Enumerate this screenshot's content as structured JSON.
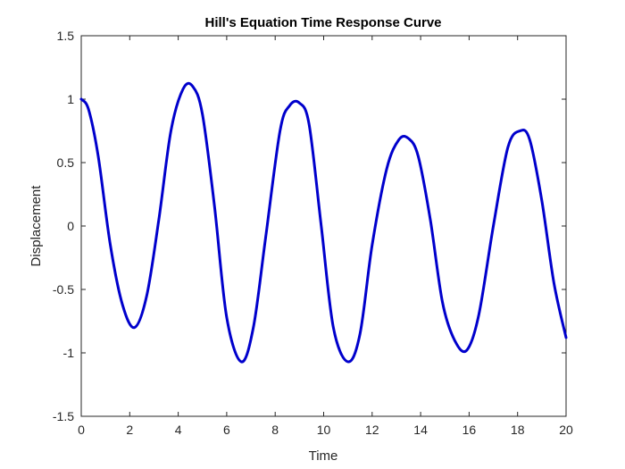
{
  "chart_data": {
    "type": "line",
    "title": "Hill's Equation Time Response Curve",
    "xlabel": "Time",
    "ylabel": "Displacement",
    "xlim": [
      0,
      20
    ],
    "ylim": [
      -1.5,
      1.5
    ],
    "xticks": [
      0,
      2,
      4,
      6,
      8,
      10,
      12,
      14,
      16,
      18,
      20
    ],
    "xtick_labels": [
      "0",
      "2",
      "4",
      "6",
      "8",
      "10",
      "12",
      "14",
      "16",
      "18",
      "20"
    ],
    "yticks": [
      1.5,
      1,
      0.5,
      0,
      -0.5,
      -1,
      -1.5
    ],
    "ytick_labels": [
      "1.5",
      "1",
      "0.5",
      "0",
      "-0.5",
      "-1",
      "-1.5"
    ],
    "grid": false,
    "colors": {
      "line": "#0000cc",
      "axes": "#262626"
    },
    "series": [
      {
        "x": [
          0,
          0.3,
          0.7,
          1.2,
          1.7,
          2.2,
          2.7,
          3.2,
          3.7,
          4.2,
          4.6,
          5.0,
          5.5,
          6.0,
          6.6,
          7.1,
          7.6,
          8.2,
          8.6,
          9.0,
          9.4,
          9.9,
          10.4,
          11.0,
          11.5,
          12.0,
          12.6,
          13.1,
          13.5,
          13.9,
          14.4,
          14.9,
          15.4,
          15.9,
          16.4,
          17.0,
          17.6,
          18.1,
          18.5,
          19.0,
          19.5,
          20.0
        ],
        "y": [
          1.0,
          0.92,
          0.55,
          -0.15,
          -0.62,
          -0.8,
          -0.55,
          0.05,
          0.75,
          1.08,
          1.1,
          0.88,
          0.15,
          -0.72,
          -1.07,
          -0.8,
          -0.1,
          0.75,
          0.95,
          0.97,
          0.8,
          0.0,
          -0.8,
          -1.07,
          -0.85,
          -0.15,
          0.45,
          0.68,
          0.69,
          0.55,
          0.05,
          -0.6,
          -0.9,
          -0.98,
          -0.7,
          0.0,
          0.62,
          0.75,
          0.68,
          0.2,
          -0.45,
          -0.88
        ]
      }
    ]
  }
}
